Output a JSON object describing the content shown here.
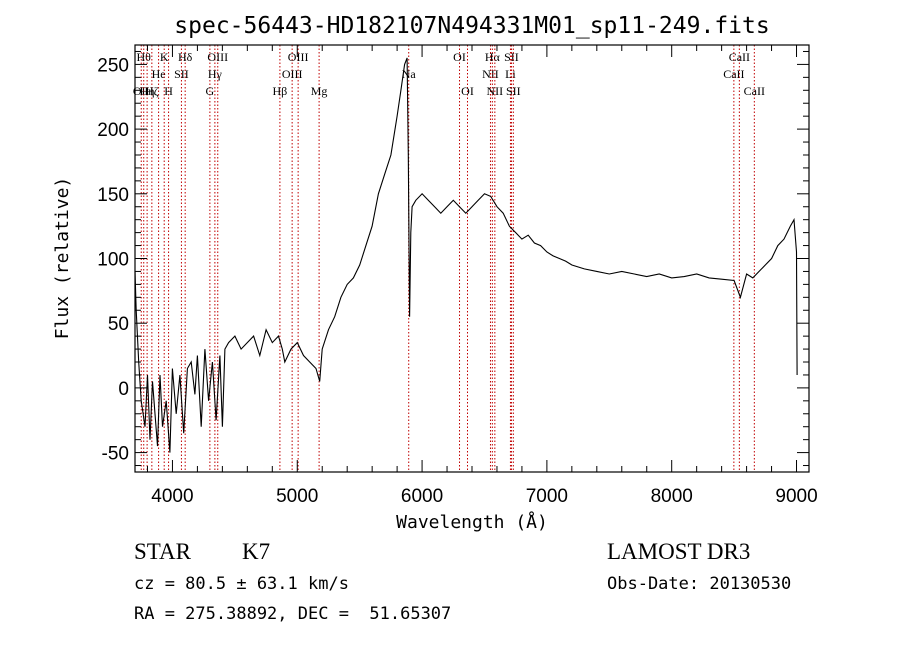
{
  "chart_data": {
    "type": "line",
    "title": "spec-56443-HD182107N494331M01_sp11-249.fits",
    "xlabel": "Wavelength (Å)",
    "ylabel": "Flux (relative)",
    "xlim": [
      3700,
      9100
    ],
    "ylim": [
      -65,
      265
    ],
    "xticks": [
      4000,
      5000,
      6000,
      7000,
      8000,
      9000
    ],
    "yticks": [
      -50,
      0,
      50,
      100,
      150,
      200,
      250
    ],
    "grid": false,
    "line_color": "#000000",
    "marker_color": "#c00000",
    "series": [
      {
        "x": [
          3700,
          3710,
          3730,
          3750,
          3780,
          3800,
          3820,
          3840,
          3860,
          3880,
          3900,
          3920,
          3950,
          3980,
          4000,
          4030,
          4060,
          4090,
          4120,
          4150,
          4180,
          4200,
          4230,
          4260,
          4290,
          4320,
          4350,
          4380,
          4400,
          4420,
          4450,
          4500,
          4550,
          4600,
          4650,
          4700,
          4750,
          4800,
          4850,
          4880,
          4900,
          4950,
          5000,
          5050,
          5100,
          5150,
          5180,
          5200,
          5250,
          5300,
          5350,
          5400,
          5450,
          5500,
          5550,
          5600,
          5650,
          5700,
          5750,
          5800,
          5830,
          5860,
          5880,
          5890,
          5900,
          5910,
          5920,
          5950,
          6000,
          6050,
          6100,
          6150,
          6200,
          6250,
          6300,
          6350,
          6400,
          6450,
          6500,
          6550,
          6600,
          6650,
          6700,
          6750,
          6800,
          6850,
          6900,
          6950,
          7000,
          7050,
          7100,
          7150,
          7200,
          7300,
          7400,
          7500,
          7600,
          7700,
          7800,
          7900,
          8000,
          8100,
          8200,
          8300,
          8400,
          8500,
          8550,
          8600,
          8650,
          8700,
          8750,
          8800,
          8850,
          8900,
          8950,
          8980,
          9000,
          9005
        ],
        "y": [
          90,
          60,
          20,
          -10,
          -30,
          10,
          -40,
          5,
          -20,
          -45,
          10,
          -30,
          -10,
          -50,
          15,
          -20,
          10,
          -35,
          15,
          20,
          -5,
          25,
          -30,
          30,
          -10,
          20,
          -25,
          25,
          -30,
          30,
          35,
          40,
          30,
          35,
          40,
          25,
          45,
          35,
          40,
          30,
          20,
          30,
          35,
          25,
          20,
          15,
          5,
          30,
          45,
          55,
          70,
          80,
          85,
          95,
          110,
          125,
          150,
          165,
          180,
          210,
          230,
          250,
          255,
          180,
          55,
          120,
          140,
          145,
          150,
          145,
          140,
          135,
          140,
          145,
          140,
          135,
          140,
          145,
          150,
          148,
          140,
          135,
          125,
          120,
          115,
          118,
          112,
          110,
          105,
          102,
          100,
          98,
          95,
          92,
          90,
          88,
          90,
          88,
          86,
          88,
          85,
          86,
          88,
          85,
          84,
          83,
          70,
          88,
          85,
          90,
          95,
          100,
          110,
          115,
          125,
          130,
          105,
          10
        ]
      }
    ],
    "line_markers": [
      {
        "x": 3750,
        "label": "OII",
        "row": 3
      },
      {
        "x": 3770,
        "label": "Hθ",
        "row": 1
      },
      {
        "x": 3797,
        "label": "Hη",
        "row": 3
      },
      {
        "x": 3835,
        "label": "Hζ",
        "row": 3
      },
      {
        "x": 3889,
        "label": "He",
        "row": 2
      },
      {
        "x": 3934,
        "label": "K",
        "row": 1
      },
      {
        "x": 3969,
        "label": "H",
        "row": 3
      },
      {
        "x": 4072,
        "label": "SII",
        "row": 2
      },
      {
        "x": 4102,
        "label": "Hδ",
        "row": 1
      },
      {
        "x": 4300,
        "label": "G",
        "row": 3
      },
      {
        "x": 4340,
        "label": "Hγ",
        "row": 2
      },
      {
        "x": 4363,
        "label": "OIII",
        "row": 1
      },
      {
        "x": 4861,
        "label": "Hβ",
        "row": 3
      },
      {
        "x": 4959,
        "label": "OIII",
        "row": 2
      },
      {
        "x": 5007,
        "label": "OIII",
        "row": 1
      },
      {
        "x": 5175,
        "label": "Mg",
        "row": 3
      },
      {
        "x": 5893,
        "label": "Na",
        "row": 2
      },
      {
        "x": 6300,
        "label": "OI",
        "row": 1
      },
      {
        "x": 6364,
        "label": "OI",
        "row": 3
      },
      {
        "x": 6548,
        "label": "NII",
        "row": 2
      },
      {
        "x": 6563,
        "label": "Hα",
        "row": 1
      },
      {
        "x": 6583,
        "label": "NII",
        "row": 3
      },
      {
        "x": 6708,
        "label": "Li",
        "row": 2
      },
      {
        "x": 6716,
        "label": "SII",
        "row": 1
      },
      {
        "x": 6731,
        "label": "SII",
        "row": 3
      },
      {
        "x": 8498,
        "label": "CaII",
        "row": 2
      },
      {
        "x": 8542,
        "label": "CaII",
        "row": 1
      },
      {
        "x": 8662,
        "label": "CaII",
        "row": 3
      }
    ]
  },
  "info": {
    "class_label": "STAR",
    "subclass": "K7",
    "survey": "LAMOST DR3",
    "cz": "cz = 80.5 ± 63.1 km/s",
    "obs_date": "Obs-Date: 20130530",
    "radec": "RA = 275.38892, DEC =  51.65307"
  }
}
